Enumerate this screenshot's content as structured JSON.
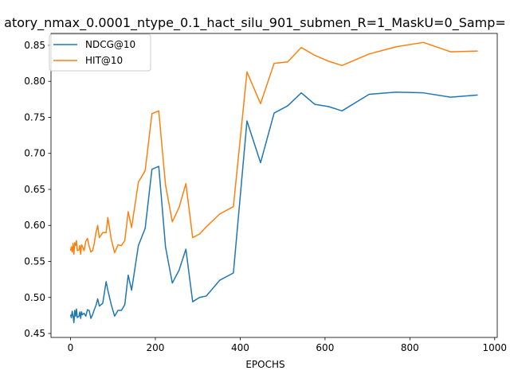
{
  "chart_data": {
    "type": "line",
    "title": "atory_nmax_0.0001_ntype_0.1_hact_silu_901_submen_R=1_MaskU=0_Samp=",
    "xlabel": "EPOCHS",
    "ylabel": "",
    "xlim": [
      -46,
      1006
    ],
    "ylim": [
      0.4445,
      0.8665
    ],
    "xticks": [
      0,
      200,
      400,
      600,
      800,
      1000
    ],
    "yticks": [
      0.45,
      0.5,
      0.55,
      0.6,
      0.65,
      0.7,
      0.75,
      0.8,
      0.85
    ],
    "ytick_labels": [
      "0.45",
      "0.50",
      "0.55",
      "0.60",
      "0.65",
      "0.70",
      "0.75",
      "0.80",
      "0.85"
    ],
    "grid": false,
    "legend_position": "upper-left",
    "series": [
      {
        "name": "NDCG@10",
        "color": "#1f77b4",
        "x": [
          0,
          2,
          4,
          6,
          8,
          10,
          12,
          14,
          16,
          20,
          22,
          24,
          26,
          28,
          32,
          36,
          40,
          44,
          48,
          52,
          56,
          60,
          64,
          68,
          76,
          84,
          88,
          96,
          104,
          112,
          120,
          128,
          136,
          144,
          160,
          176,
          192,
          208,
          224,
          240,
          256,
          272,
          288,
          304,
          320,
          352,
          384,
          416,
          448,
          480,
          512,
          544,
          576,
          608,
          640,
          704,
          768,
          832,
          896,
          960
        ],
        "y": [
          0.476,
          0.472,
          0.481,
          0.474,
          0.465,
          0.482,
          0.474,
          0.484,
          0.472,
          0.474,
          0.48,
          0.471,
          0.48,
          0.476,
          0.478,
          0.474,
          0.483,
          0.482,
          0.471,
          0.476,
          0.483,
          0.489,
          0.498,
          0.488,
          0.492,
          0.522,
          0.51,
          0.49,
          0.474,
          0.482,
          0.482,
          0.49,
          0.531,
          0.51,
          0.572,
          0.596,
          0.678,
          0.682,
          0.57,
          0.52,
          0.538,
          0.567,
          0.494,
          0.5,
          0.502,
          0.524,
          0.534,
          0.745,
          0.687,
          0.756,
          0.766,
          0.784,
          0.768,
          0.765,
          0.759,
          0.782,
          0.785,
          0.784,
          0.778,
          0.781
        ]
      },
      {
        "name": "HIT@10",
        "color": "#ff7f0e",
        "x": [
          0,
          2,
          4,
          6,
          8,
          10,
          12,
          14,
          16,
          20,
          22,
          24,
          26,
          28,
          32,
          36,
          40,
          44,
          48,
          52,
          56,
          60,
          64,
          68,
          76,
          84,
          88,
          96,
          104,
          112,
          120,
          128,
          136,
          144,
          160,
          176,
          192,
          208,
          224,
          240,
          256,
          272,
          288,
          304,
          320,
          352,
          384,
          416,
          448,
          480,
          512,
          544,
          576,
          608,
          640,
          704,
          768,
          832,
          896,
          960
        ],
        "y": [
          0.565,
          0.57,
          0.563,
          0.575,
          0.56,
          0.576,
          0.572,
          0.579,
          0.565,
          0.566,
          0.572,
          0.56,
          0.573,
          0.571,
          0.565,
          0.578,
          0.582,
          0.571,
          0.563,
          0.565,
          0.575,
          0.59,
          0.6,
          0.583,
          0.59,
          0.59,
          0.611,
          0.581,
          0.562,
          0.573,
          0.572,
          0.579,
          0.619,
          0.597,
          0.66,
          0.676,
          0.755,
          0.759,
          0.656,
          0.605,
          0.625,
          0.658,
          0.583,
          0.588,
          0.598,
          0.616,
          0.626,
          0.813,
          0.769,
          0.825,
          0.827,
          0.847,
          0.836,
          0.828,
          0.822,
          0.838,
          0.848,
          0.854,
          0.841,
          0.842
        ]
      }
    ]
  }
}
